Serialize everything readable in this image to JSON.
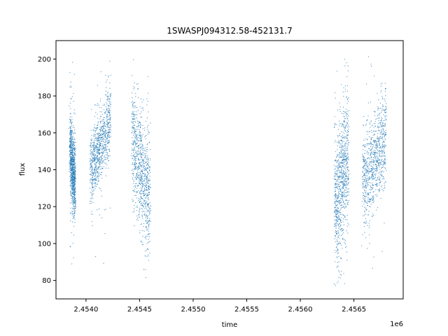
{
  "chart_data": {
    "type": "scatter",
    "title": "1SWASPJ094312.58-452131.7",
    "xlabel": "time",
    "ylabel": "flux",
    "x_offset_label": "1e6",
    "xlim": [
      2453720,
      2456960
    ],
    "ylim": [
      70,
      210
    ],
    "x_ticks": [
      2454000,
      2454500,
      2455000,
      2455500,
      2456000,
      2456500
    ],
    "x_tick_labels": [
      "2.4540",
      "2.4545",
      "2.4550",
      "2.4555",
      "2.4560",
      "2.4565"
    ],
    "y_ticks": [
      80,
      100,
      120,
      140,
      160,
      180,
      200
    ],
    "y_tick_labels": [
      "80",
      "100",
      "120",
      "140",
      "160",
      "180",
      "200"
    ],
    "grid": false,
    "legend": "none",
    "marker_color": "#1f77b4",
    "series": [
      {
        "values_description_omitted": false,
        "clusters": [
          {
            "x_start": 2453850,
            "x_end": 2453900,
            "y_start": 150,
            "y_end": 132,
            "spread": 10
          },
          {
            "x_start": 2454040,
            "x_end": 2454230,
            "y_start": 138,
            "y_end": 168,
            "spread": 9
          },
          {
            "x_start": 2454430,
            "x_end": 2454600,
            "y_start": 155,
            "y_end": 125,
            "spread": 16
          },
          {
            "x_start": 2456320,
            "x_end": 2456450,
            "y_start": 120,
            "y_end": 148,
            "spread": 18
          },
          {
            "x_start": 2456580,
            "x_end": 2456800,
            "y_start": 132,
            "y_end": 158,
            "spread": 12
          }
        ]
      }
    ]
  }
}
